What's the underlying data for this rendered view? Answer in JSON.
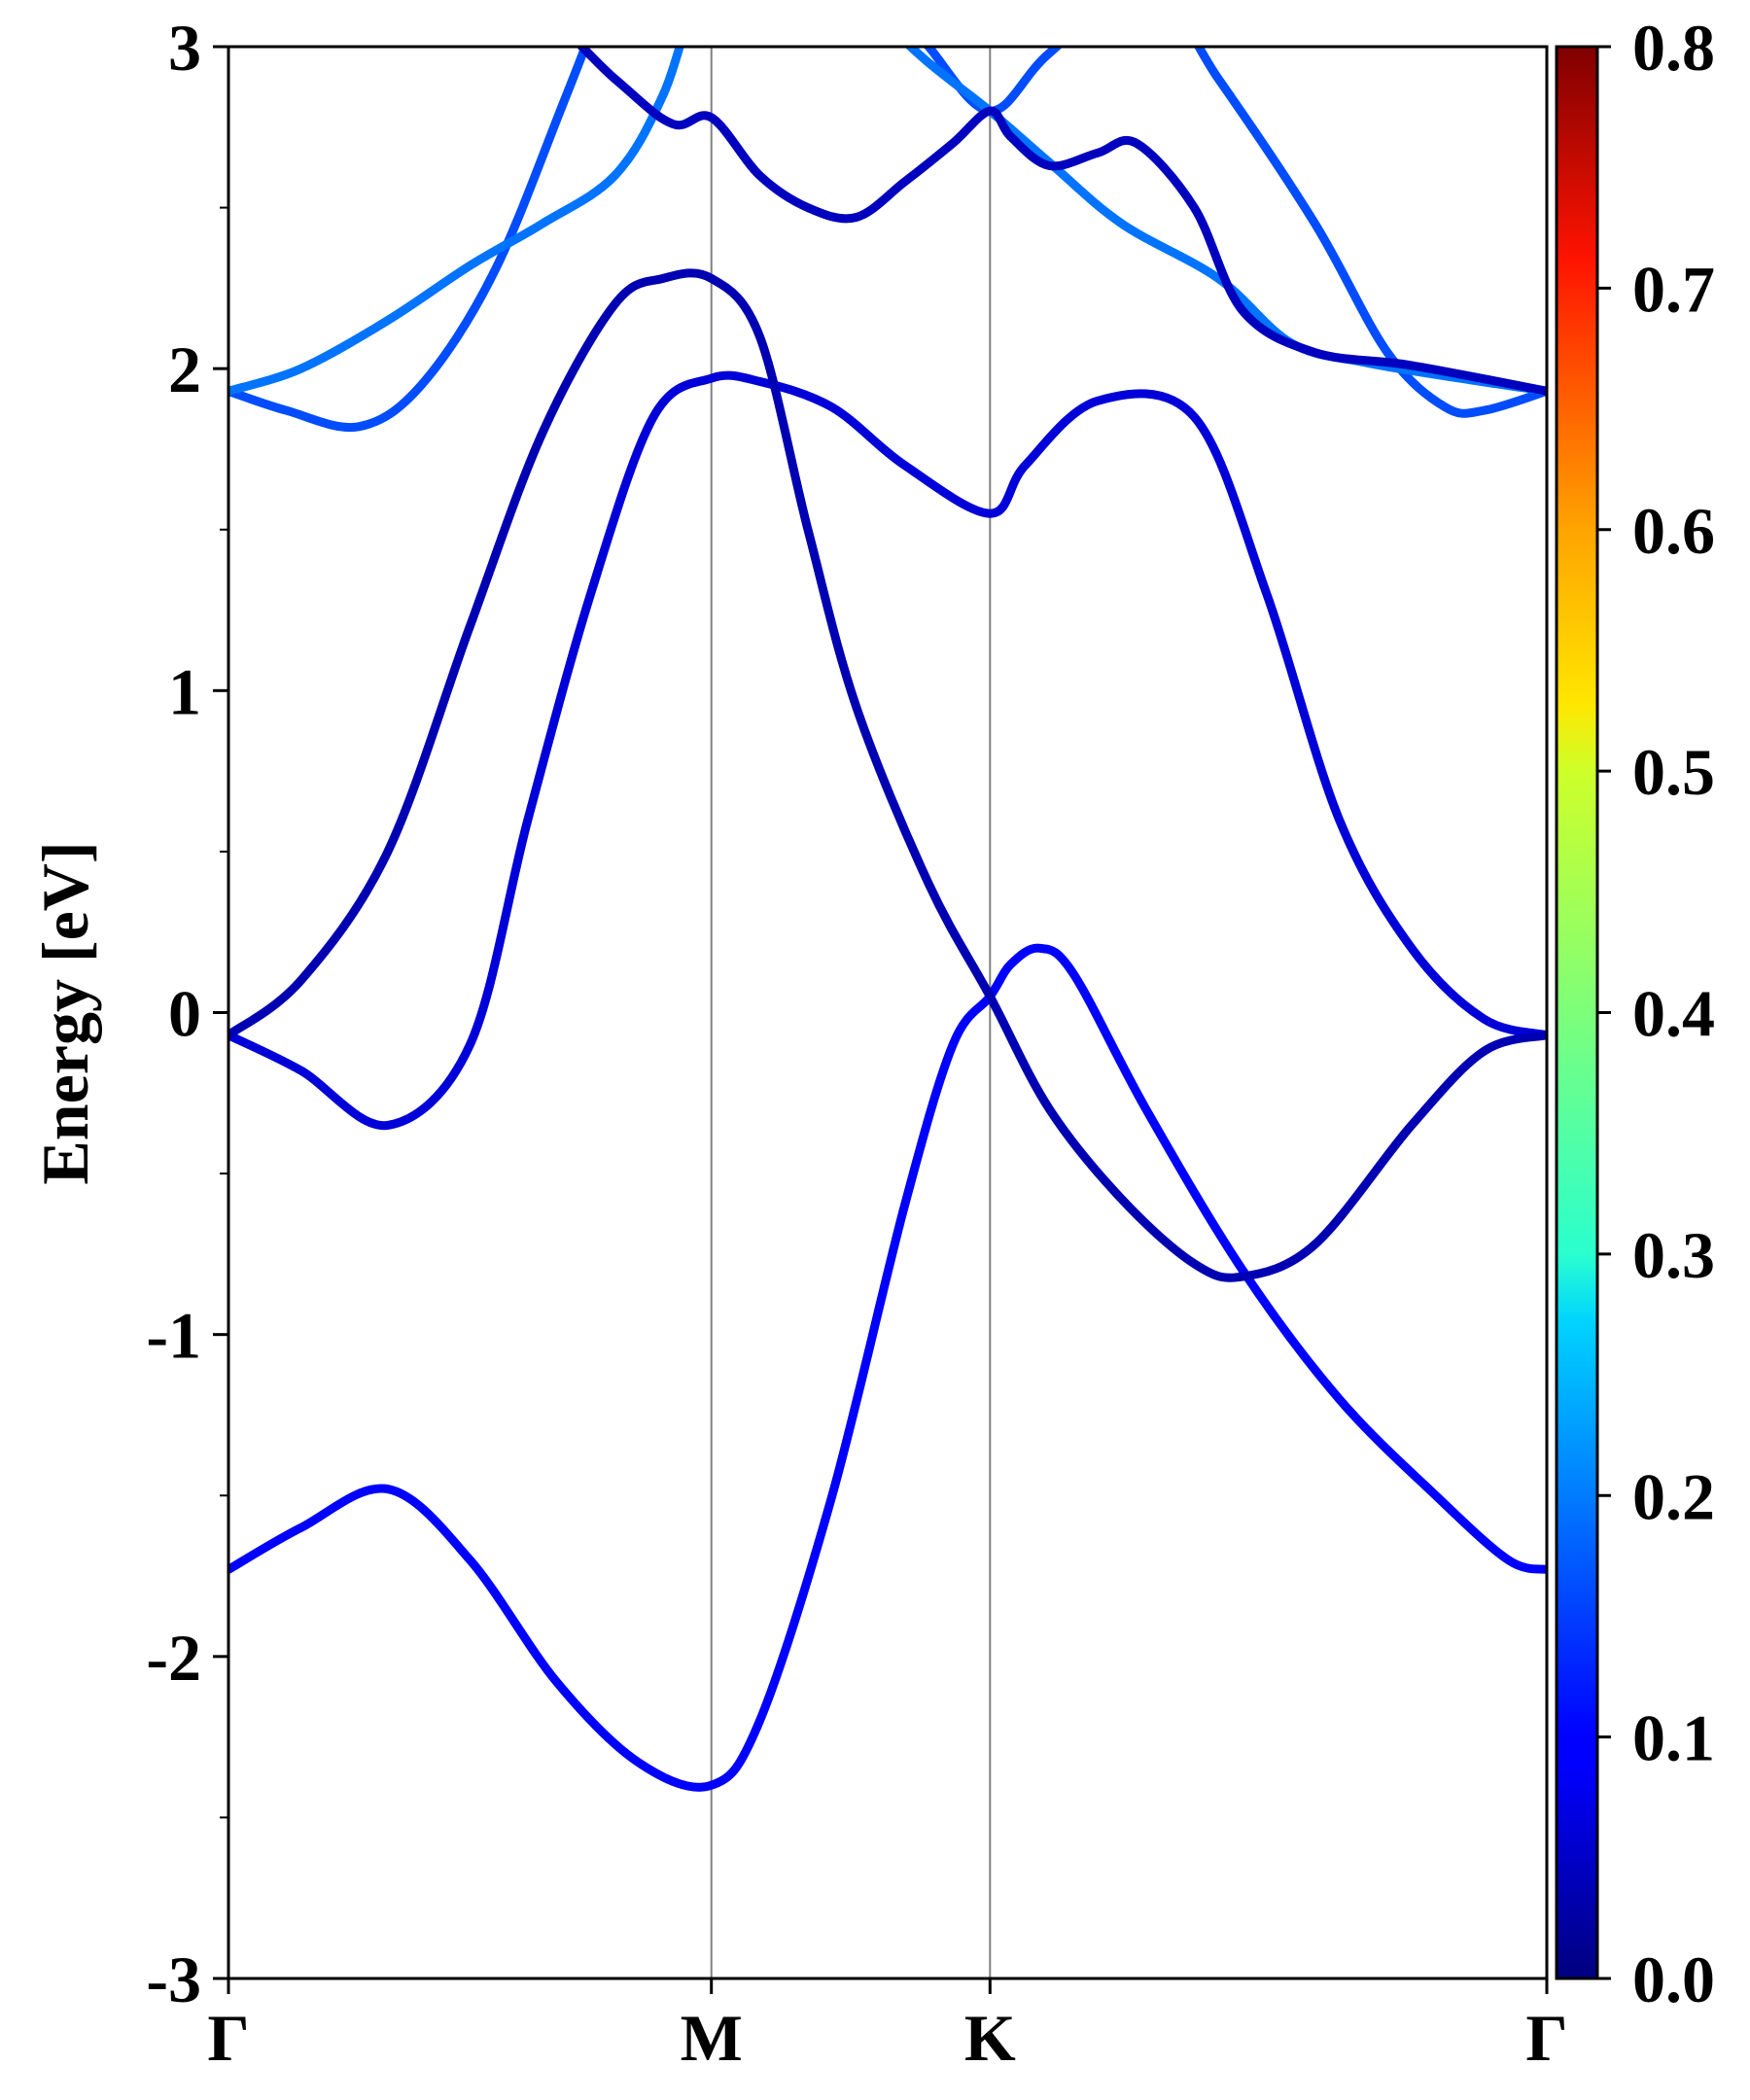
{
  "chart_data": {
    "type": "line",
    "title": "",
    "xlabel": "",
    "ylabel": "Energy [eV]",
    "ylim": [
      -3,
      3
    ],
    "yticks": [
      -3,
      -2,
      -1,
      0,
      1,
      2,
      3
    ],
    "yminor_step": 0.5,
    "xlim": [
      0,
      2.73
    ],
    "high_symmetry_points": [
      {
        "label": "Γ",
        "k": 0
      },
      {
        "label": "M",
        "k": 1.0
      },
      {
        "label": "K",
        "k": 1.577
      },
      {
        "label": "Γ",
        "k": 2.73
      }
    ],
    "colorbar": {
      "colormap": "jet",
      "range": [
        0.0,
        0.8
      ],
      "ticks": [
        "0.0",
        "0.1",
        "0.2",
        "0.3",
        "0.4",
        "0.5",
        "0.6",
        "0.7",
        "0.8"
      ]
    },
    "grid": false,
    "series": [
      {
        "weight": 0.1,
        "points": [
          [
            0,
            -1.73
          ],
          [
            0.15,
            -1.6
          ],
          [
            0.33,
            -1.48
          ],
          [
            0.5,
            -1.7
          ],
          [
            0.68,
            -2.08
          ],
          [
            0.85,
            -2.33
          ],
          [
            1.0,
            -2.4
          ],
          [
            1.1,
            -2.2
          ],
          [
            1.25,
            -1.5
          ],
          [
            1.4,
            -0.6
          ],
          [
            1.5,
            -0.1
          ],
          [
            1.577,
            0.05
          ],
          [
            1.62,
            0.15
          ],
          [
            1.68,
            0.2
          ],
          [
            1.75,
            0.12
          ],
          [
            1.9,
            -0.3
          ],
          [
            2.1,
            -0.8
          ],
          [
            2.3,
            -1.2
          ],
          [
            2.5,
            -1.5
          ],
          [
            2.65,
            -1.7
          ],
          [
            2.73,
            -1.73
          ]
        ]
      },
      {
        "weight": 0.07,
        "points": [
          [
            0,
            -0.07
          ],
          [
            0.15,
            -0.18
          ],
          [
            0.33,
            -0.35
          ],
          [
            0.5,
            -0.1
          ],
          [
            0.62,
            0.6
          ],
          [
            0.75,
            1.3
          ],
          [
            0.88,
            1.85
          ],
          [
            1.0,
            1.97
          ],
          [
            1.1,
            1.96
          ],
          [
            1.25,
            1.88
          ],
          [
            1.4,
            1.7
          ],
          [
            1.577,
            1.55
          ],
          [
            1.65,
            1.7
          ],
          [
            1.8,
            1.9
          ],
          [
            2.0,
            1.85
          ],
          [
            2.15,
            1.3
          ],
          [
            2.3,
            0.6
          ],
          [
            2.45,
            0.2
          ],
          [
            2.6,
            -0.02
          ],
          [
            2.73,
            -0.07
          ]
        ]
      },
      {
        "weight": 0.04,
        "points": [
          [
            0,
            -0.07
          ],
          [
            0.15,
            0.1
          ],
          [
            0.33,
            0.5
          ],
          [
            0.5,
            1.2
          ],
          [
            0.65,
            1.8
          ],
          [
            0.8,
            2.2
          ],
          [
            0.9,
            2.28
          ],
          [
            1.0,
            2.28
          ],
          [
            1.1,
            2.1
          ],
          [
            1.2,
            1.5
          ],
          [
            1.3,
            0.95
          ],
          [
            1.45,
            0.4
          ],
          [
            1.577,
            0.05
          ],
          [
            1.7,
            -0.3
          ],
          [
            1.85,
            -0.58
          ],
          [
            2.0,
            -0.78
          ],
          [
            2.1,
            -0.82
          ],
          [
            2.25,
            -0.72
          ],
          [
            2.45,
            -0.35
          ],
          [
            2.6,
            -0.12
          ],
          [
            2.73,
            -0.07
          ]
        ]
      },
      {
        "weight": 0.16,
        "points": [
          [
            0,
            1.93
          ],
          [
            0.12,
            1.87
          ],
          [
            0.27,
            1.82
          ],
          [
            0.4,
            1.95
          ],
          [
            0.55,
            2.3
          ],
          [
            0.7,
            2.85
          ],
          [
            0.87,
            3.5
          ],
          [
            1.0,
            3.9
          ],
          [
            1.2,
            3.5
          ],
          [
            1.35,
            3.2
          ],
          [
            1.45,
            3.0
          ],
          [
            1.577,
            2.8
          ],
          [
            1.7,
            2.98
          ],
          [
            1.9,
            3.2
          ],
          [
            2.05,
            2.9
          ],
          [
            2.25,
            2.45
          ],
          [
            2.4,
            2.05
          ],
          [
            2.52,
            1.88
          ],
          [
            2.6,
            1.87
          ],
          [
            2.73,
            1.93
          ]
        ]
      },
      {
        "weight": 0.19,
        "points": [
          [
            0,
            1.93
          ],
          [
            0.15,
            2.0
          ],
          [
            0.33,
            2.15
          ],
          [
            0.5,
            2.32
          ],
          [
            0.65,
            2.45
          ],
          [
            0.8,
            2.6
          ],
          [
            0.9,
            2.85
          ],
          [
            1.0,
            3.25
          ],
          [
            1.15,
            3.3
          ],
          [
            1.3,
            3.15
          ],
          [
            1.45,
            2.95
          ],
          [
            1.577,
            2.8
          ],
          [
            1.7,
            2.64
          ],
          [
            1.85,
            2.45
          ],
          [
            2.05,
            2.28
          ],
          [
            2.2,
            2.08
          ],
          [
            2.35,
            2.02
          ],
          [
            2.55,
            1.97
          ],
          [
            2.73,
            1.93
          ]
        ]
      },
      {
        "weight": 0.05,
        "points": [
          [
            0,
            3.6
          ],
          [
            0.5,
            3.3
          ],
          [
            0.8,
            2.9
          ],
          [
            0.92,
            2.76
          ],
          [
            1.0,
            2.78
          ],
          [
            1.1,
            2.6
          ],
          [
            1.2,
            2.5
          ],
          [
            1.3,
            2.47
          ],
          [
            1.4,
            2.58
          ],
          [
            1.5,
            2.7
          ],
          [
            1.577,
            2.8
          ],
          [
            1.62,
            2.72
          ],
          [
            1.7,
            2.63
          ],
          [
            1.8,
            2.67
          ],
          [
            1.88,
            2.7
          ],
          [
            2.0,
            2.5
          ],
          [
            2.1,
            2.18
          ],
          [
            2.25,
            2.05
          ],
          [
            2.45,
            2.01
          ],
          [
            2.73,
            1.93
          ]
        ]
      }
    ]
  }
}
